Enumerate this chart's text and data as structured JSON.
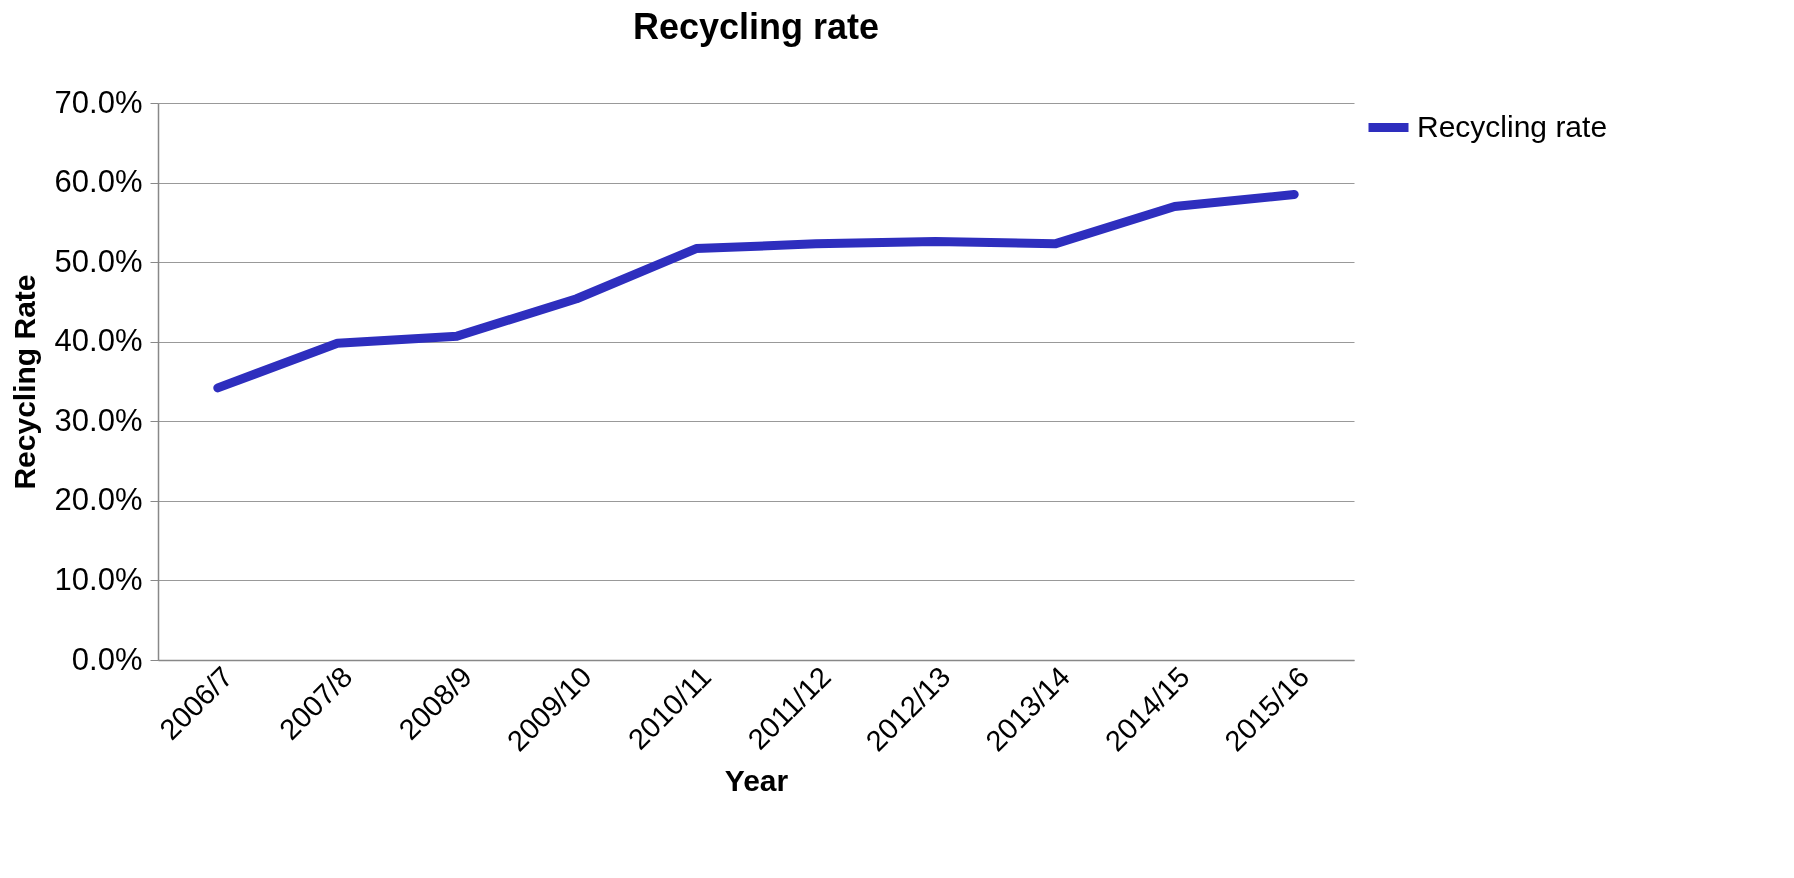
{
  "chart_data": {
    "type": "line",
    "title": "Recycling rate",
    "xlabel": "Year",
    "ylabel": "Recycling Rate",
    "categories": [
      "2006/7",
      "2007/8",
      "2008/9",
      "2009/10",
      "2010/11",
      "2011/12",
      "2012/13",
      "2013/14",
      "2014/15",
      "2015/16"
    ],
    "series": [
      {
        "name": "Recycling rate",
        "color": "#2e2ebe",
        "values": [
          34.2,
          39.8,
          40.7,
          45.4,
          51.7,
          52.3,
          52.6,
          52.3,
          57.0,
          58.5
        ]
      }
    ],
    "ylim": [
      0,
      70
    ],
    "yticks": [
      {
        "value": 0,
        "label": "0.0%"
      },
      {
        "value": 10,
        "label": "10.0%"
      },
      {
        "value": 20,
        "label": "20.0%"
      },
      {
        "value": 30,
        "label": "30.0%"
      },
      {
        "value": 40,
        "label": "40.0%"
      },
      {
        "value": 50,
        "label": "50.0%"
      },
      {
        "value": 60,
        "label": "60.0%"
      },
      {
        "value": 70,
        "label": "70.0%"
      }
    ],
    "grid": "y",
    "legend": "right"
  }
}
